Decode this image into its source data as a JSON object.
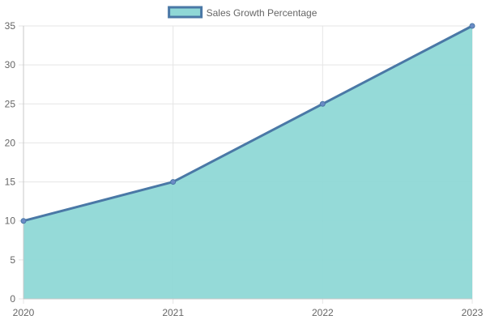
{
  "chart_data": {
    "type": "area",
    "title": "",
    "xlabel": "",
    "ylabel": "",
    "categories": [
      "2020",
      "2021",
      "2022",
      "2023"
    ],
    "series": [
      {
        "name": "Sales Growth Percentage",
        "values": [
          10,
          15,
          25,
          35
        ]
      }
    ],
    "ylim": [
      0,
      35
    ],
    "yticks": [
      0,
      5,
      10,
      15,
      20,
      25,
      30,
      35
    ],
    "grid": true,
    "legend": "top-center",
    "colors": {
      "fill": "#8fd8d6",
      "line": "#4a78a6",
      "point": "#6b8bc6",
      "grid": "#e5e5e5",
      "axis": "#c8c8c8",
      "text": "#666666"
    }
  }
}
